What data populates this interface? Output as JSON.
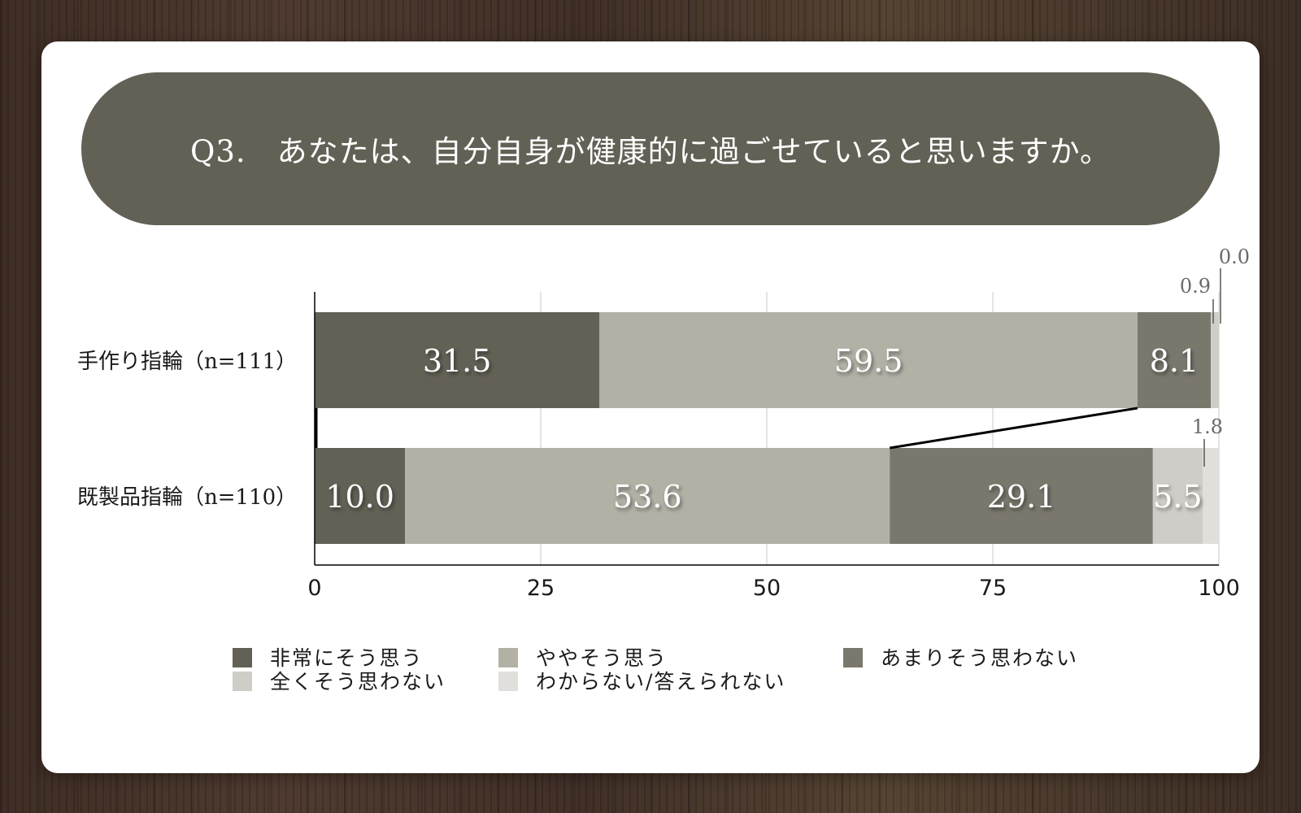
{
  "title": "Q3.　あなたは、自分自身が健康的に過ごせていると思いますか。",
  "colors": {
    "s1": "#636055",
    "s2": "#b3b0a5",
    "s3": "#7a776c",
    "s4": "#cfcdc7",
    "s5": "#e0dfdb"
  },
  "chart_data": {
    "type": "bar",
    "orientation": "horizontal",
    "stacked": true,
    "categories": [
      "手作り指輪（n=111）",
      "既製品指輪（n=110）"
    ],
    "series": [
      {
        "name": "非常にそう思う",
        "values": [
          31.5,
          10.0
        ],
        "value_labels": [
          "31.5",
          "10.0"
        ]
      },
      {
        "name": "ややそう思う",
        "values": [
          59.5,
          53.6
        ],
        "value_labels": [
          "59.5",
          "53.6"
        ]
      },
      {
        "name": "あまりそう思わない",
        "values": [
          8.1,
          29.1
        ],
        "value_labels": [
          "8.1",
          "29.1"
        ]
      },
      {
        "name": "全くそう思わない",
        "values": [
          0.9,
          5.5
        ],
        "value_labels": [
          "0.9",
          "5.5"
        ]
      },
      {
        "name": "わからない/答えられない",
        "values": [
          0.0,
          1.8
        ],
        "value_labels": [
          "0.0",
          "1.8"
        ]
      }
    ],
    "xlim": [
      0,
      100
    ],
    "xticks": [
      "0",
      "25",
      "50",
      "75",
      "100"
    ],
    "grid": true,
    "legend_position": "bottom"
  }
}
